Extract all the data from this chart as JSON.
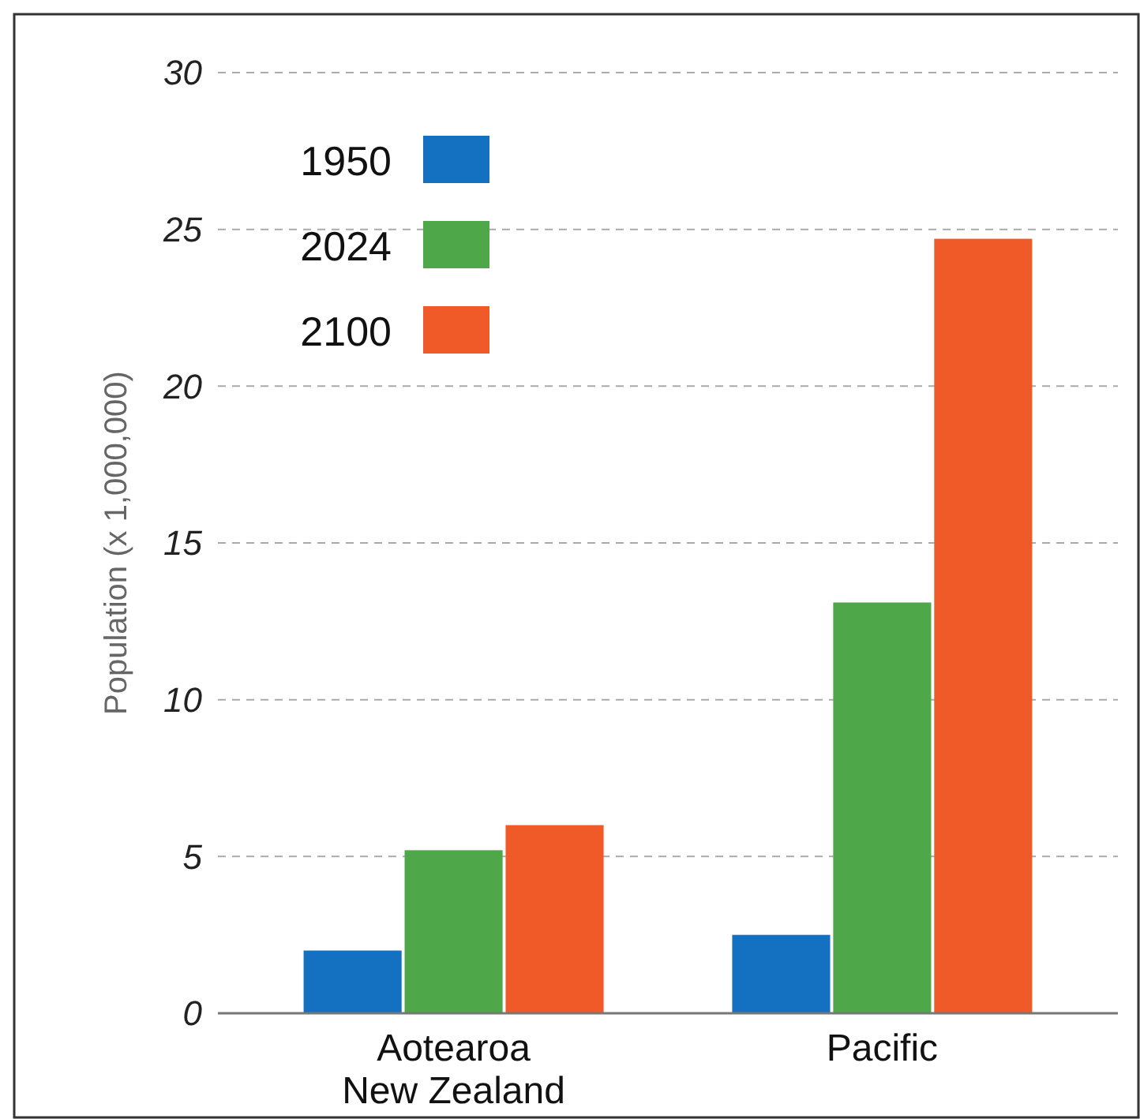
{
  "chart_data": {
    "type": "bar",
    "ylabel": "Population (x 1,000,000)",
    "categories": [
      "Aotearoa\nNew Zealand",
      "Pacific"
    ],
    "series": [
      {
        "name": "1950",
        "color": "#1470c0",
        "values": [
          2.0,
          2.5
        ]
      },
      {
        "name": "2024",
        "color": "#4ea84a",
        "values": [
          5.2,
          13.1
        ]
      },
      {
        "name": "2100",
        "color": "#f05a28",
        "values": [
          6.0,
          24.7
        ]
      }
    ],
    "ylim": [
      0,
      30
    ],
    "yticks": [
      0,
      5,
      10,
      15,
      20,
      25,
      30
    ],
    "grid": "y",
    "legend": "top left"
  }
}
